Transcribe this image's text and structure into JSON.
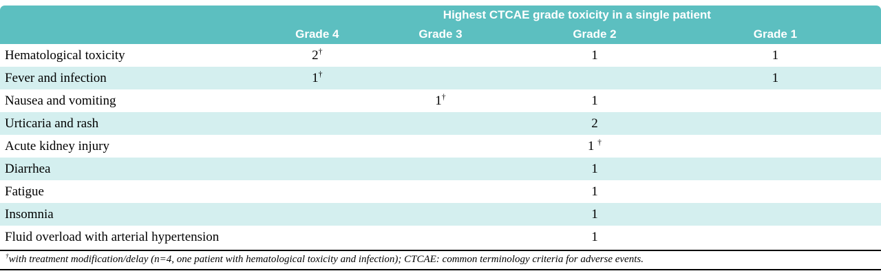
{
  "table": {
    "spanning_header": "Highest CTCAE grade toxicity in a single patient",
    "columns": [
      "Grade 4",
      "Grade 3",
      "Grade 2",
      "Grade 1"
    ],
    "rows": [
      {
        "label": "Hematological toxicity",
        "grade4": "2†",
        "grade3": "",
        "grade2": "1",
        "grade1": "1"
      },
      {
        "label": "Fever and infection",
        "grade4": "1†",
        "grade3": "",
        "grade2": "",
        "grade1": "1"
      },
      {
        "label": "Nausea and vomiting",
        "grade4": "",
        "grade3": "1†",
        "grade2": "1",
        "grade1": ""
      },
      {
        "label": "Urticaria and rash",
        "grade4": "",
        "grade3": "",
        "grade2": "2",
        "grade1": ""
      },
      {
        "label": "Acute kidney injury",
        "grade4": "",
        "grade3": "",
        "grade2": "1 †",
        "grade1": ""
      },
      {
        "label": "Diarrhea",
        "grade4": "",
        "grade3": "",
        "grade2": "1",
        "grade1": ""
      },
      {
        "label": "Fatigue",
        "grade4": "",
        "grade3": "",
        "grade2": "1",
        "grade1": ""
      },
      {
        "label": "Insomnia",
        "grade4": "",
        "grade3": "",
        "grade2": "1",
        "grade1": ""
      },
      {
        "label": "Fluid overload with arterial hypertension",
        "grade4": "",
        "grade3": "",
        "grade2": "1",
        "grade1": ""
      }
    ],
    "footnote": {
      "marker": "†",
      "text": "with treatment modification/delay (n=4, one patient with hematological toxicity and infection); CTCAE: common terminology criteria for adverse events."
    }
  },
  "colors": {
    "header_bg": "#5cbfc0",
    "header_text": "#ffffff",
    "alt_row_bg": "#d4efef",
    "row_bg": "#ffffff",
    "body_text": "#000000"
  }
}
